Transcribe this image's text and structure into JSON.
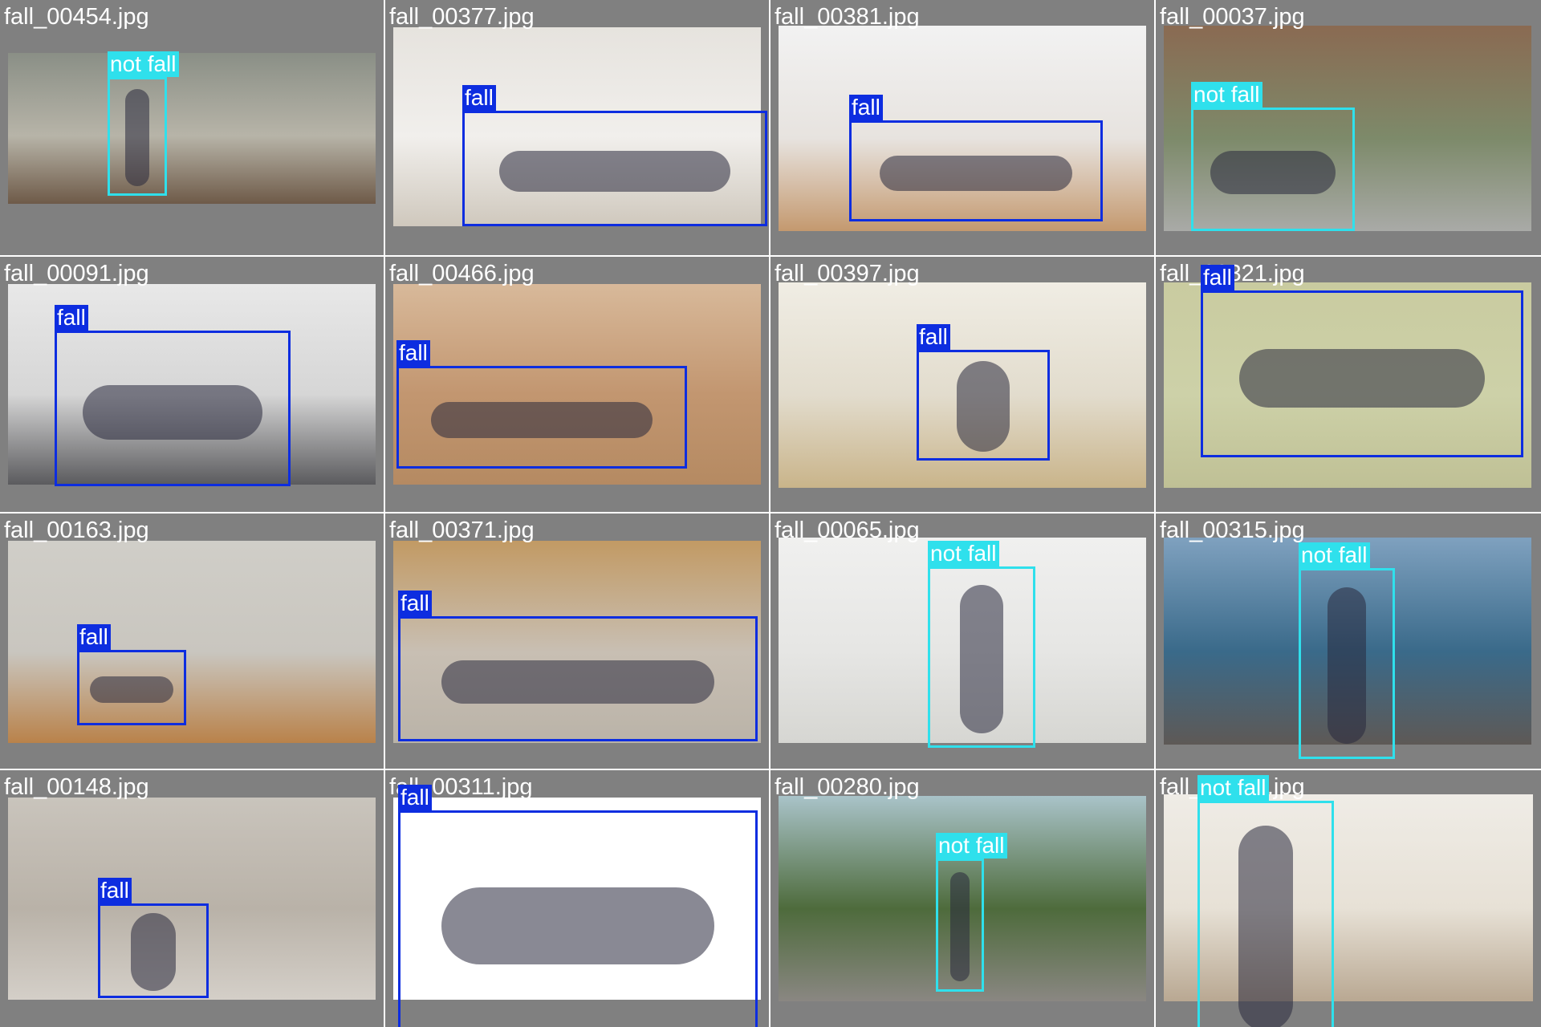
{
  "colors": {
    "tile_bg": "#808080",
    "fall": "#0d2de0",
    "not_fall": "#2fe0ec"
  },
  "tiles": [
    {
      "filename": "fall_00454.jpg",
      "label": "not fall",
      "bg": [
        "#8a8f86",
        "#b7b4a8",
        "#6e5a48"
      ]
    },
    {
      "filename": "fall_00377.jpg",
      "label": "fall",
      "bg": [
        "#e6e3de",
        "#f1efec",
        "#cfc8bd"
      ]
    },
    {
      "filename": "fall_00381.jpg",
      "label": "fall",
      "bg": [
        "#f2f2f2",
        "#e7e3df",
        "#c4996f"
      ]
    },
    {
      "filename": "fall_00037.jpg",
      "label": "not fall",
      "bg": [
        "#8a6a52",
        "#7d8a6a",
        "#a9aaa7"
      ]
    },
    {
      "filename": "fall_00091.jpg",
      "label": "fall",
      "bg": [
        "#e8e8e8",
        "#d6d6d6",
        "#5b5b5e"
      ]
    },
    {
      "filename": "fall_00466.jpg",
      "label": "fall",
      "bg": [
        "#d8b99a",
        "#c29670",
        "#b58a62"
      ]
    },
    {
      "filename": "fall_00397.jpg",
      "label": "fall",
      "bg": [
        "#f0ede4",
        "#e2dccd",
        "#c9b48a"
      ]
    },
    {
      "filename": "fall_00321.jpg",
      "label": "fall",
      "bg": [
        "#c9cba0",
        "#cdd1a8",
        "#bfc095"
      ]
    },
    {
      "filename": "fall_00163.jpg",
      "label": "fall",
      "bg": [
        "#d0cec8",
        "#c9c6bf",
        "#b9824a"
      ]
    },
    {
      "filename": "fall_00371.jpg",
      "label": "fall",
      "bg": [
        "#c29a64",
        "#c8bfb3",
        "#bab3a8"
      ]
    },
    {
      "filename": "fall_00065.jpg",
      "label": "not fall",
      "bg": [
        "#f0f0ef",
        "#e6e6e4",
        "#d6d6d2"
      ]
    },
    {
      "filename": "fall_00315.jpg",
      "label": "not fall",
      "bg": [
        "#7fa1bf",
        "#3a6a8a",
        "#5e5956"
      ]
    },
    {
      "filename": "fall_00148.jpg",
      "label": "fall",
      "bg": [
        "#c9c4bc",
        "#b9b2a8",
        "#d4cfc8"
      ]
    },
    {
      "filename": "fall_00311.jpg",
      "label": "fall",
      "bg": [
        "#ffffff",
        "#ffffff",
        "#ffffff"
      ]
    },
    {
      "filename": "fall_00280.jpg",
      "label": "not fall",
      "bg": [
        "#a9c3c9",
        "#4e6b3c",
        "#8a8782"
      ]
    },
    {
      "filename": "fall_00332.jpg",
      "label": "not fall",
      "bg": [
        "#efece6",
        "#e7e1d6",
        "#b9a892"
      ]
    }
  ]
}
